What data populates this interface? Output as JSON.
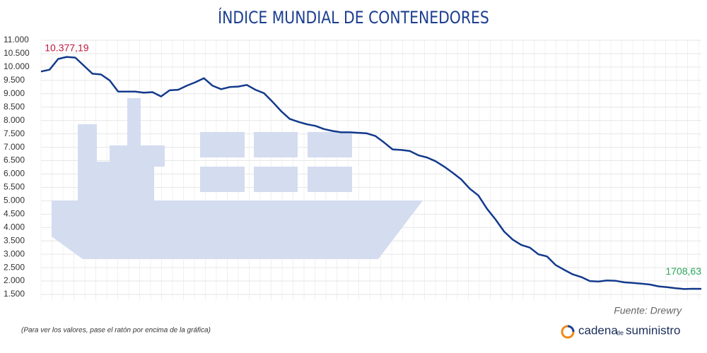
{
  "chart_data": {
    "type": "line",
    "title": "ÍNDICE MUNDIAL DE CONTENEDORES",
    "color": "#133a8c",
    "values": [
      9830,
      9900,
      10300,
      10377.19,
      10350,
      10050,
      9750,
      9720,
      9500,
      9080,
      9080,
      9080,
      9040,
      9060,
      8900,
      9130,
      9150,
      9300,
      9430,
      9580,
      9300,
      9170,
      9250,
      9270,
      9330,
      9150,
      9020,
      8700,
      8350,
      8060,
      7950,
      7860,
      7800,
      7680,
      7610,
      7560,
      7560,
      7540,
      7520,
      7420,
      7180,
      6920,
      6900,
      6860,
      6700,
      6620,
      6480,
      6280,
      6050,
      5800,
      5450,
      5200,
      4700,
      4300,
      3850,
      3550,
      3350,
      3250,
      3000,
      2920,
      2600,
      2420,
      2250,
      2150,
      2000,
      1980,
      2020,
      2010,
      1950,
      1930,
      1900,
      1870,
      1800,
      1770,
      1730,
      1700,
      1710,
      1708.63
    ],
    "value_labels": [
      null,
      null,
      null,
      "10.377,19",
      null,
      null,
      null,
      null,
      null,
      null,
      null,
      null,
      null,
      null,
      null,
      null,
      null,
      null,
      null,
      null,
      null,
      null,
      null,
      null,
      null,
      null,
      null,
      null,
      null,
      null,
      null,
      null,
      null,
      null,
      null,
      null,
      null,
      null,
      null,
      null,
      null,
      null,
      null,
      null,
      null,
      null,
      null,
      null,
      null,
      null,
      null,
      null,
      null,
      null,
      null,
      null,
      null,
      null,
      null,
      null,
      null,
      null,
      null,
      null,
      null,
      null,
      null,
      null,
      null,
      null,
      null,
      null,
      null,
      null,
      null,
      null,
      null,
      "1708,63"
    ],
    "ylim": [
      1500,
      11000
    ],
    "yticks": [
      {
        "value": 1500,
        "label": "1.500"
      },
      {
        "value": 2000,
        "label": "2.000"
      },
      {
        "value": 2500,
        "label": "2.500"
      },
      {
        "value": 3000,
        "label": "3.000"
      },
      {
        "value": 3500,
        "label": "3.500"
      },
      {
        "value": 4000,
        "label": "4.000"
      },
      {
        "value": 4500,
        "label": "4.500"
      },
      {
        "value": 5000,
        "label": "5.000"
      },
      {
        "value": 5500,
        "label": "5.500"
      },
      {
        "value": 6000,
        "label": "6.000"
      },
      {
        "value": 6500,
        "label": "6.500"
      },
      {
        "value": 7000,
        "label": "7.000"
      },
      {
        "value": 7500,
        "label": "7.500"
      },
      {
        "value": 8000,
        "label": "8.000"
      },
      {
        "value": 8500,
        "label": "8.500"
      },
      {
        "value": 9000,
        "label": "9.000"
      },
      {
        "value": 9500,
        "label": "9.500"
      },
      {
        "value": 10000,
        "label": "10.000"
      },
      {
        "value": 10500,
        "label": "10.500"
      },
      {
        "value": 11000,
        "label": "11.000"
      }
    ],
    "grid": true,
    "source": "Fuente: Drewry",
    "note": "(Para ver los valores, pase el ratón por encima de la gráfica)",
    "logo": [
      "cadena",
      "de",
      "suministro"
    ]
  }
}
